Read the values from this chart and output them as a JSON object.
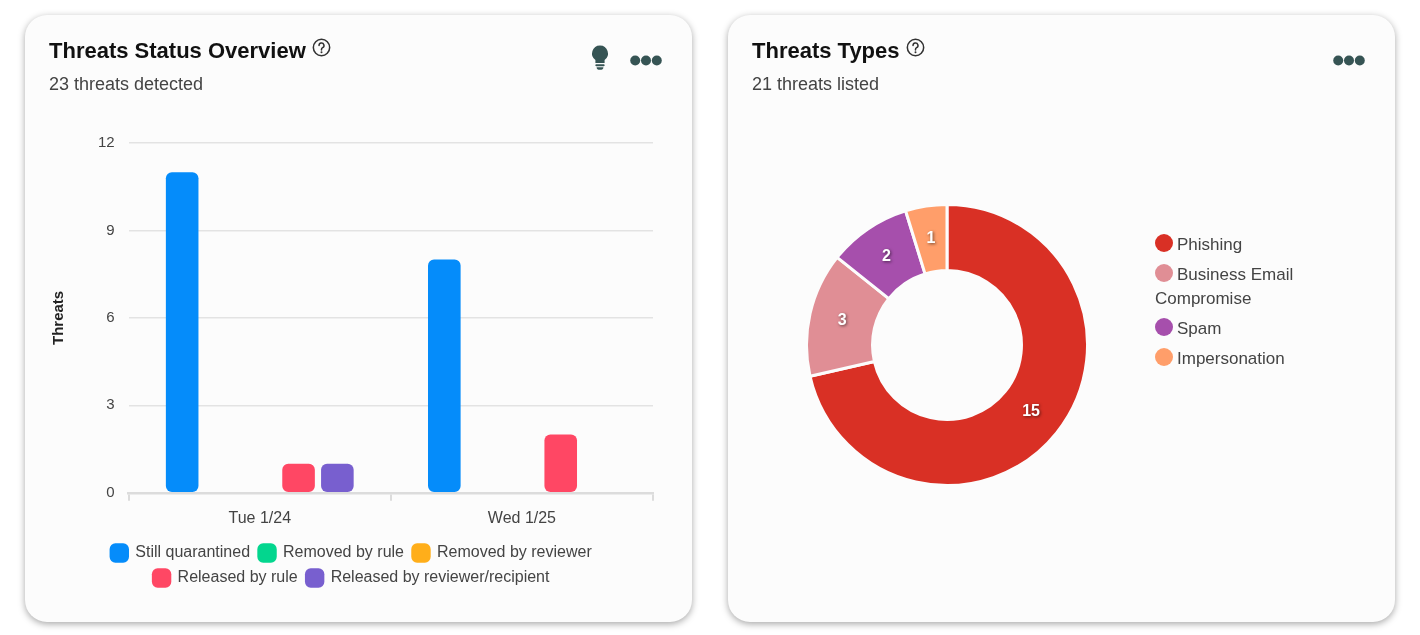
{
  "chart_data": [
    {
      "type": "bar",
      "title": "Threats Status Overview",
      "subtitle": "23 threats detected",
      "ylabel": "Threats",
      "categories": [
        "Tue 1/24",
        "Wed 1/25"
      ],
      "series": [
        {
          "name": "Still quarantined",
          "color": "#058cfa",
          "values": [
            11,
            8
          ]
        },
        {
          "name": "Removed by rule",
          "color": "#03d68e",
          "values": [
            0,
            0
          ]
        },
        {
          "name": "Removed by reviewer",
          "color": "#ffae1a",
          "values": [
            0,
            0
          ]
        },
        {
          "name": "Released by rule",
          "color": "#ff4764",
          "values": [
            1,
            2
          ]
        },
        {
          "name": "Released by reviewer/recipient",
          "color": "#785fcf",
          "values": [
            1,
            0
          ]
        }
      ],
      "ylim": [
        0,
        12
      ],
      "yticks": [
        0,
        3,
        6,
        9,
        12
      ],
      "grid": "y",
      "legend": "bottom"
    },
    {
      "type": "donut",
      "title": "Threats Types",
      "subtitle": "21 threats listed",
      "categories": [
        "Phishing",
        "Business Email Compromise",
        "Spam",
        "Impersonation"
      ],
      "values": [
        15,
        3,
        2,
        1
      ],
      "colors": [
        "#d93025",
        "#e08e95",
        "#a64fac",
        "#ff9e6a"
      ],
      "data_labels": true,
      "legend": "right"
    }
  ]
}
